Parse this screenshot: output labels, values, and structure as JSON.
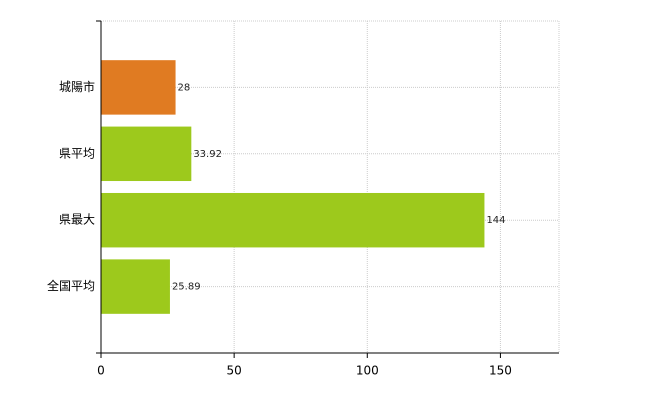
{
  "chart_data": {
    "type": "bar",
    "orientation": "horizontal",
    "categories": [
      "城陽市",
      "県平均",
      "県最大",
      "全国平均"
    ],
    "values": [
      28,
      33.92,
      144,
      25.89
    ],
    "colors": [
      "#e07b22",
      "#9dc91c",
      "#9dc91c",
      "#9dc91c"
    ],
    "xlim": [
      0,
      172
    ],
    "xticks": [
      0,
      50,
      100,
      150
    ],
    "grid": true
  }
}
